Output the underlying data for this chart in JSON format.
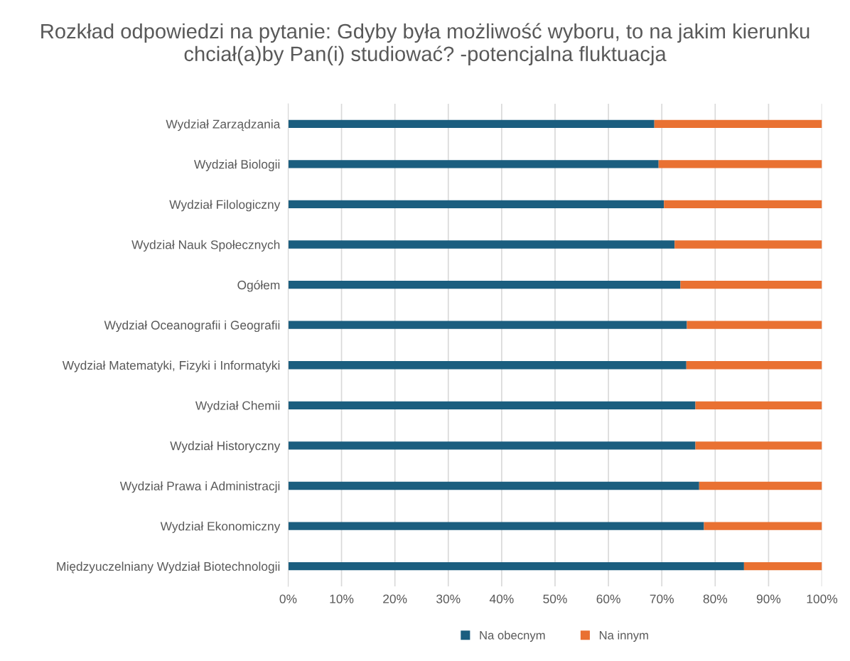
{
  "chart_data": {
    "type": "bar",
    "orientation": "horizontal",
    "stacked": true,
    "title": "Rozkład odpowiedzi na pytanie: Gdyby była możliwość wyboru, to na jakim kierunku chciał(a)by Pan(i) studiować? -potencjalna fluktuacja",
    "categories": [
      "Wydział Zarządzania",
      "Wydział Biologii",
      "Wydział Filologiczny",
      "Wydział Nauk Społecznych",
      "Ogółem",
      "Wydział Oceanografii i Geografii",
      "Wydział Matematyki, Fizyki i Informatyki",
      "Wydział Chemii",
      "Wydział Historyczny",
      "Wydział Prawa i Administracji",
      "Wydział Ekonomiczny",
      "Międzyuczelniany Wydział Biotechnologii"
    ],
    "series": [
      {
        "name": "Na obecnym",
        "color": "#1b5e7f",
        "values": [
          68.6,
          69.4,
          70.4,
          72.4,
          73.5,
          74.7,
          74.6,
          76.3,
          76.3,
          77.0,
          77.9,
          85.4
        ]
      },
      {
        "name": "Na innym",
        "color": "#e97132",
        "values": [
          31.4,
          30.6,
          29.6,
          27.6,
          26.5,
          25.3,
          25.4,
          23.7,
          23.7,
          23.0,
          22.1,
          14.6
        ]
      }
    ],
    "xlim": [
      0,
      100
    ],
    "xticks": [
      {
        "value": 0,
        "label": "0%"
      },
      {
        "value": 10,
        "label": "10%"
      },
      {
        "value": 20,
        "label": "20%"
      },
      {
        "value": 30,
        "label": "30%"
      },
      {
        "value": 40,
        "label": "40%"
      },
      {
        "value": 50,
        "label": "50%"
      },
      {
        "value": 60,
        "label": "60%"
      },
      {
        "value": 70,
        "label": "70%"
      },
      {
        "value": 80,
        "label": "80%"
      },
      {
        "value": 90,
        "label": "90%"
      },
      {
        "value": 100,
        "label": "100%"
      }
    ],
    "grid": "x",
    "legend": "bottom"
  }
}
